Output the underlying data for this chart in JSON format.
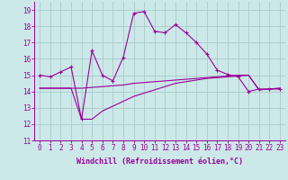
{
  "background_color": "#cce8e8",
  "grid_color": "#aacccc",
  "line_color": "#990099",
  "xlim": [
    -0.5,
    23.5
  ],
  "ylim": [
    11,
    19.5
  ],
  "yticks": [
    11,
    12,
    13,
    14,
    15,
    16,
    17,
    18,
    19
  ],
  "xticks": [
    0,
    1,
    2,
    3,
    4,
    5,
    6,
    7,
    8,
    9,
    10,
    11,
    12,
    13,
    14,
    15,
    16,
    17,
    18,
    19,
    20,
    21,
    22,
    23
  ],
  "xlabel": "Windchill (Refroidissement éolien,°C)",
  "xlabel_fontsize": 6.0,
  "tick_fontsize": 5.5,
  "line1_x": [
    0,
    1,
    2,
    3,
    4,
    5,
    6,
    7,
    8,
    9,
    10,
    11,
    12,
    13,
    14,
    15,
    16,
    17,
    18,
    19,
    20,
    21,
    22,
    23
  ],
  "line1_y": [
    15.0,
    14.9,
    15.2,
    15.5,
    12.3,
    16.5,
    15.0,
    14.65,
    16.1,
    18.8,
    18.9,
    17.7,
    17.6,
    18.1,
    17.6,
    17.0,
    16.3,
    15.3,
    15.05,
    14.9,
    14.0,
    14.15,
    14.15,
    14.15
  ],
  "line2_x": [
    0,
    1,
    2,
    3,
    4,
    5,
    6,
    7,
    8,
    9,
    10,
    11,
    12,
    13,
    14,
    15,
    16,
    17,
    18,
    19,
    20,
    21,
    22,
    23
  ],
  "line2_y": [
    14.2,
    14.2,
    14.2,
    14.2,
    14.2,
    14.25,
    14.3,
    14.35,
    14.4,
    14.5,
    14.55,
    14.6,
    14.65,
    14.7,
    14.75,
    14.8,
    14.85,
    14.9,
    14.95,
    15.0,
    15.0,
    14.1,
    14.15,
    14.2
  ],
  "line3_x": [
    0,
    1,
    2,
    3,
    4,
    5,
    6,
    7,
    8,
    9,
    10,
    11,
    12,
    13,
    14,
    15,
    16,
    17,
    18,
    19,
    20,
    21,
    22,
    23
  ],
  "line3_y": [
    14.2,
    14.2,
    14.2,
    14.2,
    12.3,
    12.3,
    12.8,
    13.1,
    13.4,
    13.7,
    13.9,
    14.1,
    14.3,
    14.5,
    14.6,
    14.7,
    14.8,
    14.85,
    14.9,
    14.95,
    15.0,
    14.1,
    14.15,
    14.2
  ]
}
